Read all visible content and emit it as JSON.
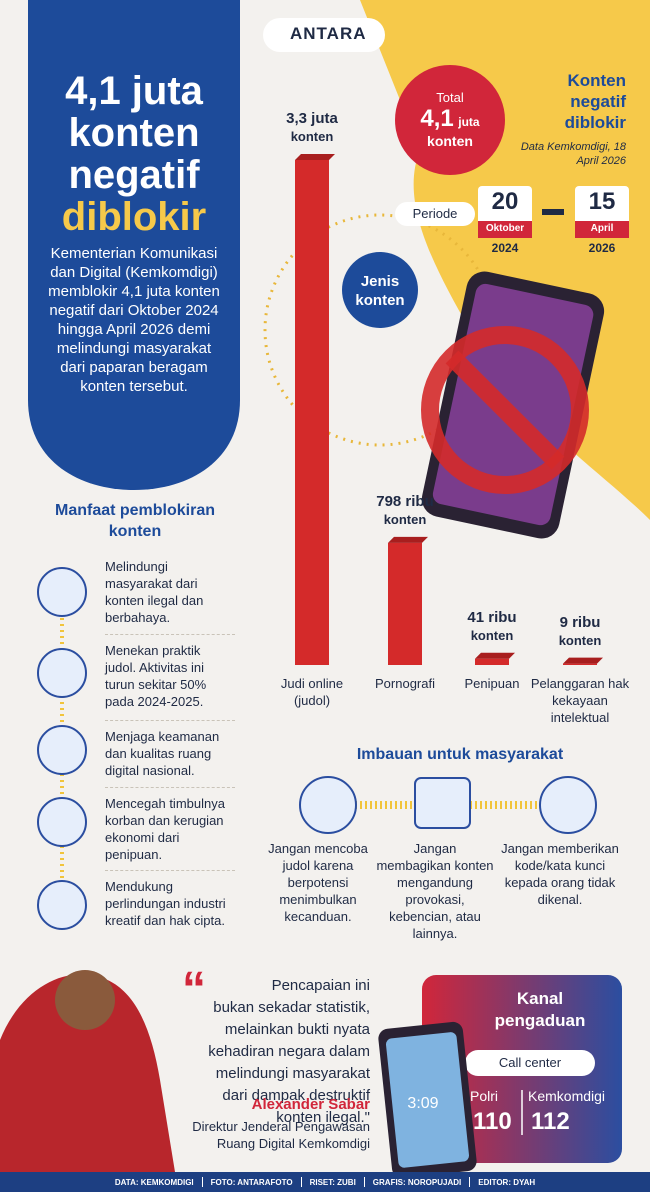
{
  "header": {
    "logo": "ANTARA",
    "title_lines": [
      "4,1 juta",
      "konten",
      "negatif"
    ],
    "title_highlight": "diblokir",
    "intro": "Kementerian Komunikasi dan Digital (Kemkomdigi) memblokir 4,1 juta konten negatif dari Oktober 2024 hingga April 2026 demi melindungi masyarakat dari paparan beragam konten tersebut."
  },
  "total": {
    "label": "Total",
    "value": "4,1",
    "unit": "juta",
    "noun": "konten"
  },
  "side_title": "Konten negatif diblokir",
  "source": "Data Kemkomdigi, 18 April 2026",
  "period": {
    "label": "Periode",
    "start": {
      "day": "20",
      "month": "Oktober",
      "year": "2024"
    },
    "end": {
      "day": "15",
      "month": "April",
      "year": "2026"
    }
  },
  "chart_data": {
    "type": "bar",
    "title": "Jenis konten",
    "categories": [
      "Judi online (judol)",
      "Pornografi",
      "Penipuan",
      "Pelanggaran hak kekayaan intelektual"
    ],
    "values": [
      3300000,
      798000,
      41000,
      9000
    ],
    "value_labels": [
      "3,3 juta",
      "798 ribu",
      "41 ribu",
      "9 ribu"
    ],
    "value_label_noun": "konten",
    "color": "#d42a2a"
  },
  "benefits": {
    "title": "Manfaat pemblokiran konten",
    "items": [
      "Melindungi masyarakat dari konten ilegal dan berbahaya.",
      "Menekan praktik judol. Aktivitas ini turun sekitar 50% pada 2024-2025.",
      "Menjaga keamanan dan kualitas ruang digital nasional.",
      "Mencegah timbulnya korban dan kerugian ekonomi dari penipuan.",
      "Mendukung perlindungan industri kreatif dan hak cipta."
    ]
  },
  "advice": {
    "title": "Imbauan untuk masyarakat",
    "items": [
      "Jangan mencoba judol karena berpotensi menimbulkan kecanduan.",
      "Jangan membagikan konten mengandung provokasi, kebencian, atau lainnya.",
      "Jangan memberikan kode/kata kunci kepada orang tidak dikenal."
    ]
  },
  "quote": {
    "text": "Pencapaian ini bukan sekadar statistik, melainkan bukti nyata kehadiran negara dalam melindungi masyarakat dari dampak destruktif konten ilegal.\"",
    "name": "Alexander Sabar",
    "role": "Direktur Jenderal Pengawasan Ruang Digital Kemkomdigi"
  },
  "phone_time": "3:09",
  "complaint": {
    "title": "Kanal pengaduan",
    "call_center": "Call center",
    "contacts": [
      {
        "name": "Polri",
        "number": "110"
      },
      {
        "name": "Kemkomdigi",
        "number": "112"
      }
    ]
  },
  "footer": [
    "DATA: KEMKOMDIGI",
    "FOTO: ANTARAFOTO",
    "RISET: ZUBI",
    "GRAFIS: NOROPUJADI",
    "EDITOR: DYAH"
  ]
}
